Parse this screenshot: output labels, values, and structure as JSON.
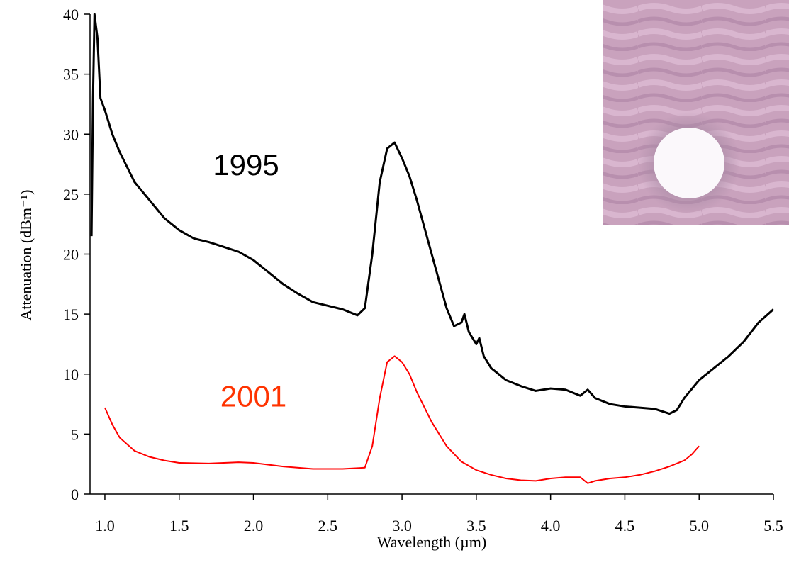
{
  "chart_data": {
    "type": "line",
    "x_label": "Wavelength (µm)",
    "y_label": "Attenuation (dBm⁻¹)",
    "xlim": [
      0.9,
      5.5
    ],
    "ylim": [
      0,
      40
    ],
    "xticks": [
      {
        "value": 1,
        "label": "1.0"
      },
      1.5,
      {
        "value": 2,
        "label": "2.0"
      },
      2.5,
      {
        "value": 3,
        "label": "3.0"
      },
      3.5,
      {
        "value": 4,
        "label": "4.0"
      },
      4.5,
      {
        "value": 5,
        "label": "5.0"
      },
      5.5
    ],
    "yticks": [
      0,
      5,
      10,
      15,
      20,
      25,
      30,
      35,
      40
    ],
    "grid": false,
    "annotations": [
      {
        "text": "1995",
        "x": 1.95,
        "y": 26.6,
        "color": "#000000"
      },
      {
        "text": "2001",
        "x": 2.0,
        "y": 7.3,
        "color": "#ff3300"
      }
    ],
    "series": [
      {
        "name": "1995",
        "color": "#000000",
        "x": [
          0.91,
          0.92,
          0.93,
          0.95,
          0.97,
          1.0,
          1.05,
          1.1,
          1.2,
          1.3,
          1.4,
          1.5,
          1.6,
          1.7,
          1.8,
          1.9,
          2.0,
          2.1,
          2.2,
          2.3,
          2.4,
          2.5,
          2.6,
          2.7,
          2.75,
          2.8,
          2.85,
          2.9,
          2.95,
          3.0,
          3.05,
          3.1,
          3.2,
          3.3,
          3.35,
          3.4,
          3.42,
          3.45,
          3.5,
          3.52,
          3.55,
          3.6,
          3.7,
          3.8,
          3.9,
          4.0,
          4.1,
          4.2,
          4.25,
          4.3,
          4.4,
          4.5,
          4.6,
          4.7,
          4.8,
          4.85,
          4.9,
          5.0,
          5.1,
          5.2,
          5.3,
          5.4,
          5.5
        ],
        "values": [
          21.5,
          33,
          40,
          38,
          33,
          32,
          30,
          28.5,
          26,
          24.5,
          23,
          22,
          21.3,
          21,
          20.6,
          20.2,
          19.5,
          18.5,
          17.5,
          16.7,
          16,
          15.7,
          15.4,
          14.9,
          15.5,
          20,
          26,
          28.8,
          29.3,
          28,
          26.5,
          24.5,
          20,
          15.5,
          14,
          14.3,
          15,
          13.5,
          12.5,
          13,
          11.5,
          10.5,
          9.5,
          9,
          8.6,
          8.8,
          8.7,
          8.2,
          8.7,
          8,
          7.5,
          7.3,
          7.2,
          7.1,
          6.7,
          7,
          8,
          9.5,
          10.5,
          11.5,
          12.7,
          14.3,
          15.4
        ]
      },
      {
        "name": "2001",
        "color": "#ff0000",
        "x": [
          1.0,
          1.05,
          1.1,
          1.2,
          1.3,
          1.4,
          1.5,
          1.7,
          1.9,
          2.0,
          2.2,
          2.4,
          2.6,
          2.75,
          2.8,
          2.85,
          2.9,
          2.95,
          3.0,
          3.05,
          3.1,
          3.2,
          3.3,
          3.4,
          3.5,
          3.6,
          3.7,
          3.8,
          3.9,
          4.0,
          4.1,
          4.2,
          4.25,
          4.3,
          4.4,
          4.5,
          4.6,
          4.7,
          4.8,
          4.9,
          4.95,
          5.0
        ],
        "values": [
          7.2,
          5.8,
          4.7,
          3.6,
          3.1,
          2.8,
          2.6,
          2.55,
          2.65,
          2.6,
          2.3,
          2.1,
          2.1,
          2.2,
          4,
          8,
          11,
          11.5,
          11,
          10,
          8.5,
          6,
          4,
          2.7,
          2,
          1.6,
          1.3,
          1.15,
          1.1,
          1.3,
          1.4,
          1.4,
          0.9,
          1.1,
          1.3,
          1.4,
          1.6,
          1.9,
          2.3,
          2.8,
          3.3,
          4.0
        ]
      }
    ]
  }
}
